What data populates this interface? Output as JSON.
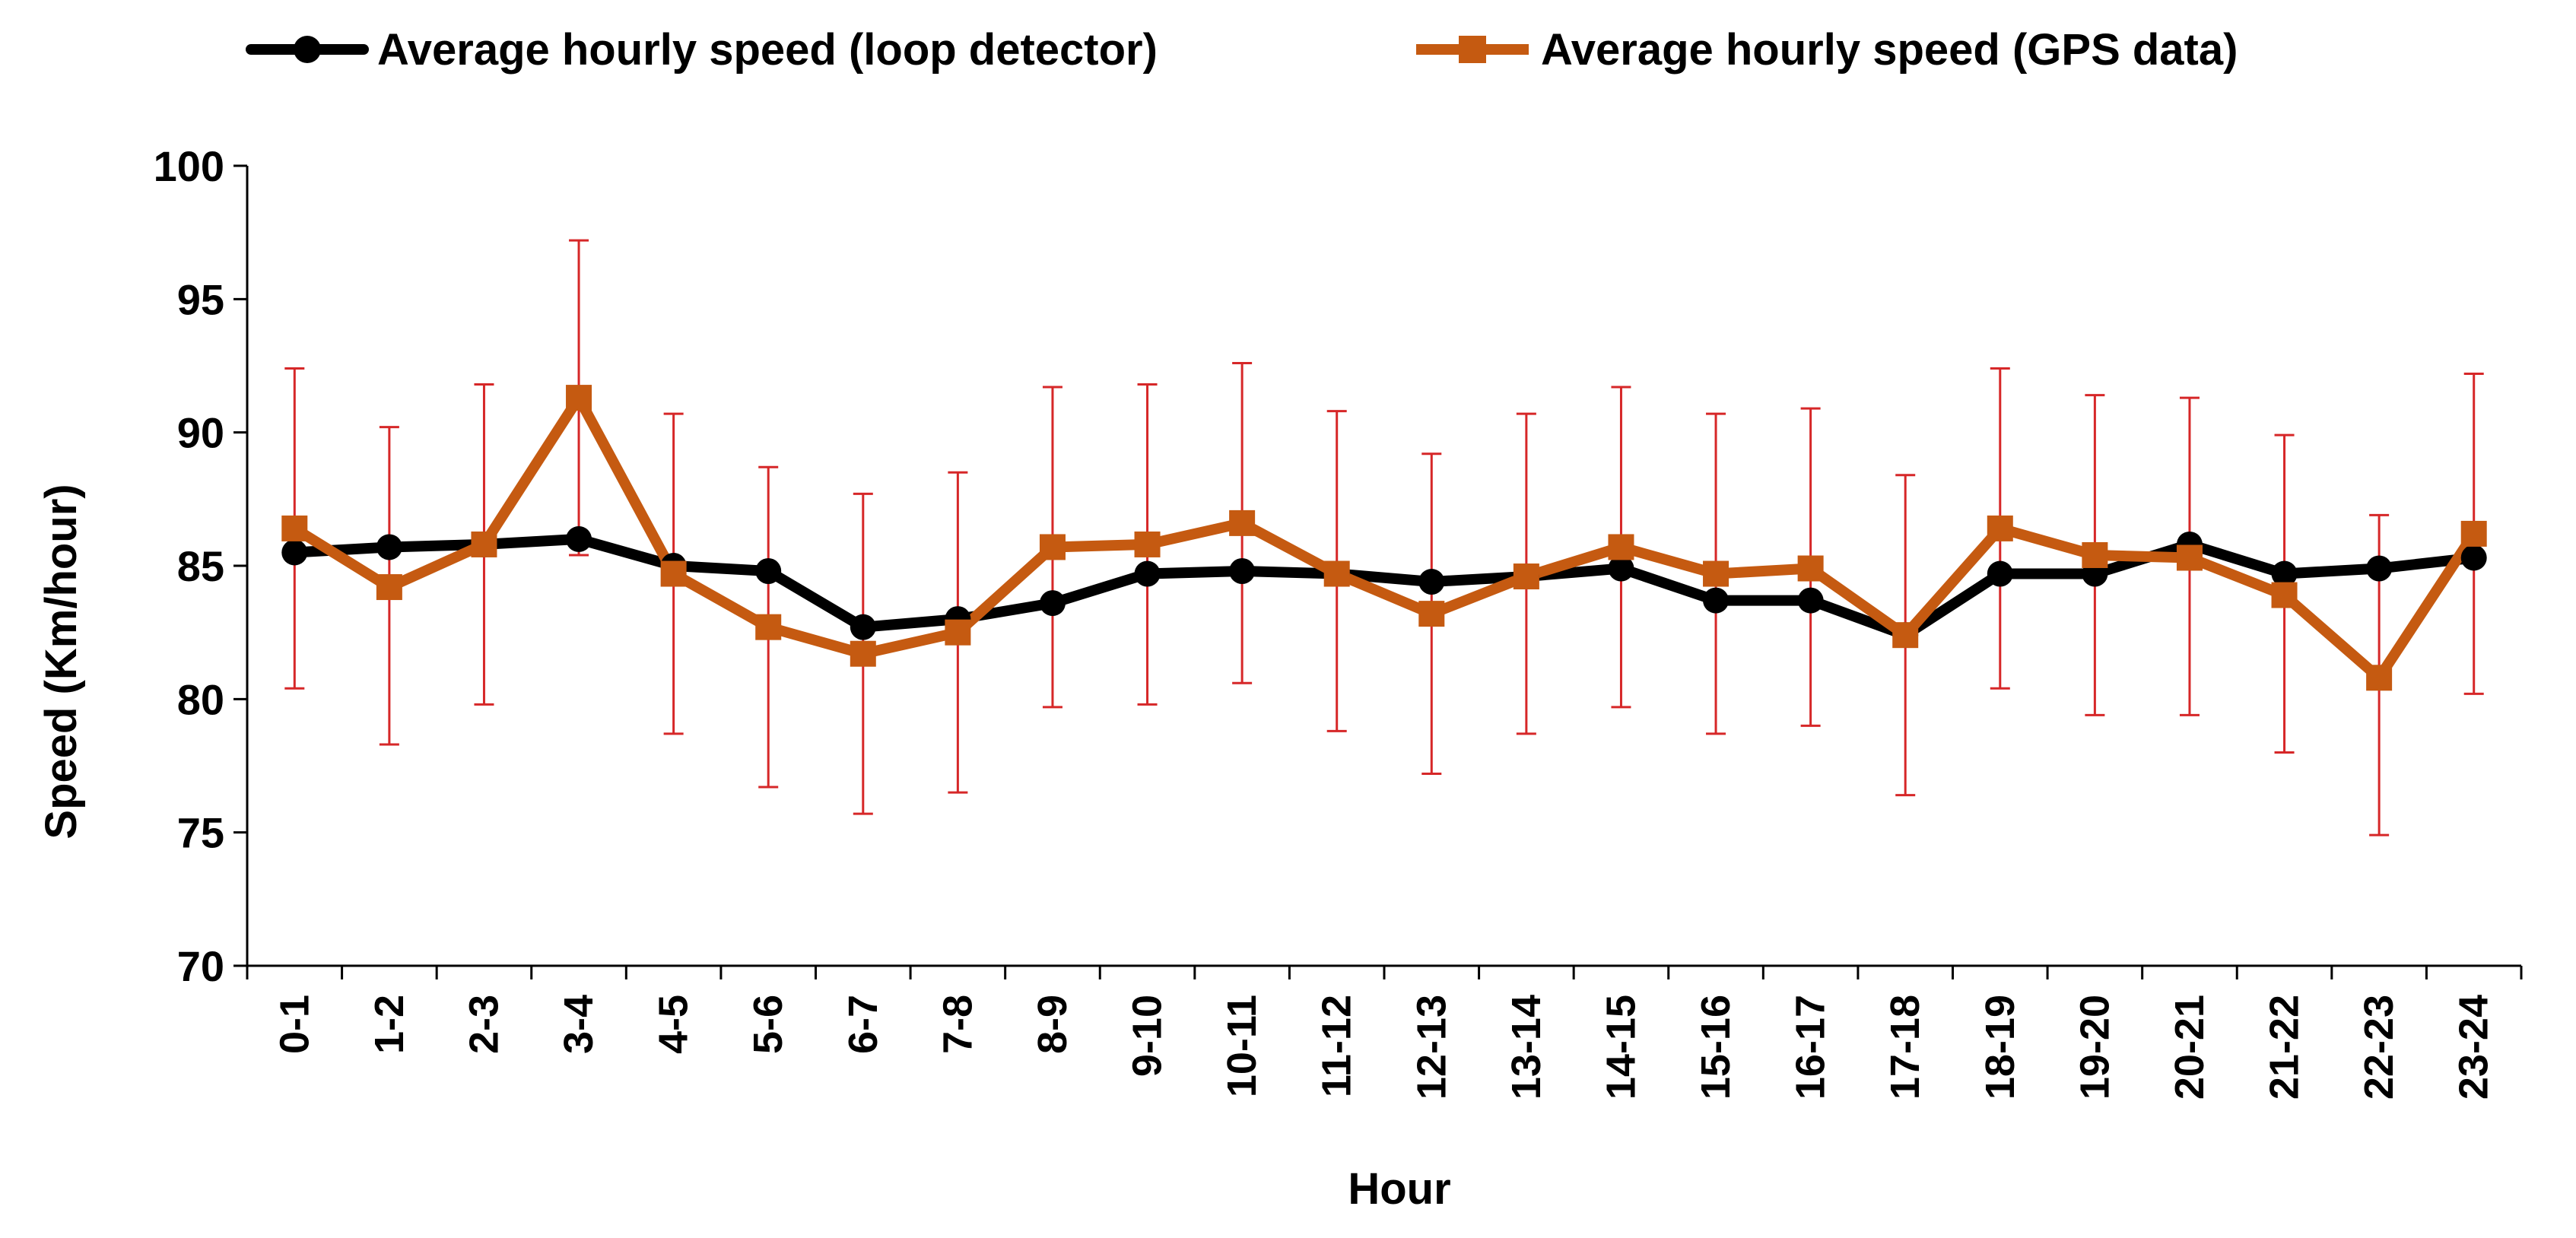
{
  "chart_data": {
    "type": "line",
    "title": "",
    "xlabel": "Hour",
    "ylabel": "Speed (Km/hour)",
    "ylim": [
      70,
      100
    ],
    "yticks": [
      70,
      75,
      80,
      85,
      90,
      95,
      100
    ],
    "grid": false,
    "legend_position": "top",
    "categories": [
      "0-1",
      "1-2",
      "2-3",
      "3-4",
      "4-5",
      "5-6",
      "6-7",
      "7-8",
      "8-9",
      "9-10",
      "10-11",
      "11-12",
      "12-13",
      "13-14",
      "14-15",
      "15-16",
      "16-17",
      "17-18",
      "18-19",
      "19-20",
      "20-21",
      "21-22",
      "22-23",
      "23-24"
    ],
    "series": [
      {
        "name": "Average hourly speed (loop detector)",
        "color": "#000000",
        "marker": "circle",
        "values": [
          85.5,
          85.7,
          85.8,
          86.0,
          85.0,
          84.8,
          82.7,
          83.0,
          83.6,
          84.7,
          84.8,
          84.7,
          84.4,
          84.6,
          84.9,
          83.7,
          83.7,
          82.4,
          84.7,
          84.7,
          85.8,
          84.7,
          84.9,
          85.3
        ]
      },
      {
        "name": "Average hourly speed (GPS data)",
        "color": "#C55A11",
        "marker": "square",
        "values": [
          86.4,
          84.2,
          85.8,
          91.3,
          84.7,
          82.7,
          81.7,
          82.5,
          85.7,
          85.8,
          86.6,
          84.7,
          83.2,
          84.6,
          85.7,
          84.7,
          84.9,
          82.4,
          86.4,
          85.4,
          85.3,
          83.9,
          80.8,
          86.2
        ],
        "error_upper": [
          92.4,
          90.2,
          91.8,
          97.2,
          90.7,
          88.7,
          87.7,
          88.5,
          91.7,
          91.8,
          92.6,
          90.8,
          89.2,
          90.7,
          91.7,
          90.7,
          90.9,
          88.4,
          92.4,
          91.4,
          91.3,
          89.9,
          86.9,
          92.2
        ],
        "error_lower": [
          80.4,
          78.3,
          79.8,
          85.4,
          78.7,
          76.7,
          75.7,
          76.5,
          79.7,
          79.8,
          80.6,
          78.8,
          77.2,
          78.7,
          79.7,
          78.7,
          79.0,
          76.4,
          80.4,
          79.4,
          79.4,
          78.0,
          74.9,
          80.2
        ],
        "error_color": "#D62728"
      }
    ]
  }
}
